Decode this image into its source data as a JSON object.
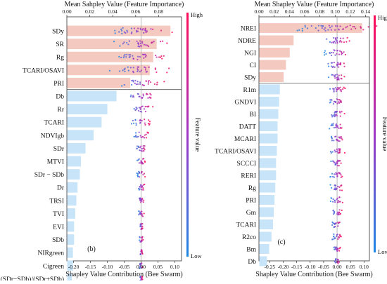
{
  "colors": {
    "low": "#1e88e5",
    "high": "#ff0d57",
    "bar_top": "#f4c9c0",
    "bar_bottom": "#c7e4f9"
  },
  "chart_data": [
    {
      "type": "bar",
      "panel_label": "(b)",
      "top_axis_label": "Mean Sahpley Value (Feature Importance)",
      "bottom_axis_label": "Shapley Value Contribution (Bee Swarm)",
      "colorbar_label": "Feature value",
      "colorbar_high": "High",
      "colorbar_low": "Low",
      "top_xlim": [
        0,
        0.1
      ],
      "top_ticks": [
        "0.00",
        "0.02",
        "0.04",
        "0.06",
        "0.08"
      ],
      "top_tick_values": [
        0,
        0.02,
        0.04,
        0.06,
        0.08
      ],
      "bottom_xlim": [
        -0.22,
        0.12
      ],
      "bottom_ticks": [
        "-0.20",
        "-0.15",
        "-0.10",
        "-0.05",
        "0.00",
        "0.05",
        "0.10"
      ],
      "bottom_tick_values": [
        -0.2,
        -0.15,
        -0.1,
        -0.05,
        0.0,
        0.05,
        0.1
      ],
      "top_group_count": 5,
      "categories": [
        "SDy",
        "SR",
        "Rg",
        "TCARI/OSAVI",
        "PRI",
        "Db",
        "Rr",
        "TCARI",
        "NDVIgb",
        "SDr",
        "MTVI",
        "SDr − SDb",
        "Dr",
        "TRSI",
        "TVI",
        "EVI",
        "SDb",
        "NIRgreen",
        "Cigreen",
        "(SDr−SDb)/(SDr+SDb)"
      ],
      "values": [
        0.09,
        0.078,
        0.075,
        0.072,
        0.055,
        0.043,
        0.035,
        0.03,
        0.023,
        0.016,
        0.012,
        0.011,
        0.009,
        0.008,
        0.007,
        0.006,
        0.006,
        0.005,
        0.005,
        0.004
      ]
    },
    {
      "type": "bar",
      "panel_label": "(c)",
      "top_axis_label": "Mean Shapley Value (Feature Importance)",
      "bottom_axis_label": "Shapley Value Contribution (Bee Swarm)",
      "colorbar_label": "Feature value",
      "colorbar_high": "High",
      "colorbar_low": "Low",
      "top_xlim": [
        0,
        0.145
      ],
      "top_ticks": [
        "0.00",
        "0.02",
        "0.04",
        "0.06",
        "0.08",
        "0.10",
        "0.12",
        "0.14"
      ],
      "top_tick_values": [
        0,
        0.02,
        0.04,
        0.06,
        0.08,
        0.1,
        0.12,
        0.14
      ],
      "bottom_xlim": [
        -0.29,
        0.12
      ],
      "bottom_ticks": [
        "-0.25",
        "-0.20",
        "-0.15",
        "-0.10",
        "-0.05",
        "0.00",
        "0.05",
        "0.10"
      ],
      "bottom_tick_values": [
        -0.25,
        -0.2,
        -0.15,
        -0.1,
        -0.05,
        0.0,
        0.05,
        0.1
      ],
      "top_group_count": 5,
      "categories": [
        "NREI",
        "NDRE",
        "NGI",
        "CI",
        "SDy",
        "R1m",
        "GNDVI",
        "BI",
        "DATT",
        "MCARI",
        "TCARI/OSAVI",
        "SCCCI",
        "RERI",
        "Rg",
        "PRI",
        "Gm",
        "TCARI",
        "R2co",
        "Bm",
        "Db"
      ],
      "values": [
        0.135,
        0.045,
        0.04,
        0.035,
        0.032,
        0.027,
        0.026,
        0.025,
        0.024,
        0.024,
        0.023,
        0.022,
        0.022,
        0.021,
        0.02,
        0.019,
        0.018,
        0.016,
        0.013,
        0.01
      ]
    }
  ]
}
